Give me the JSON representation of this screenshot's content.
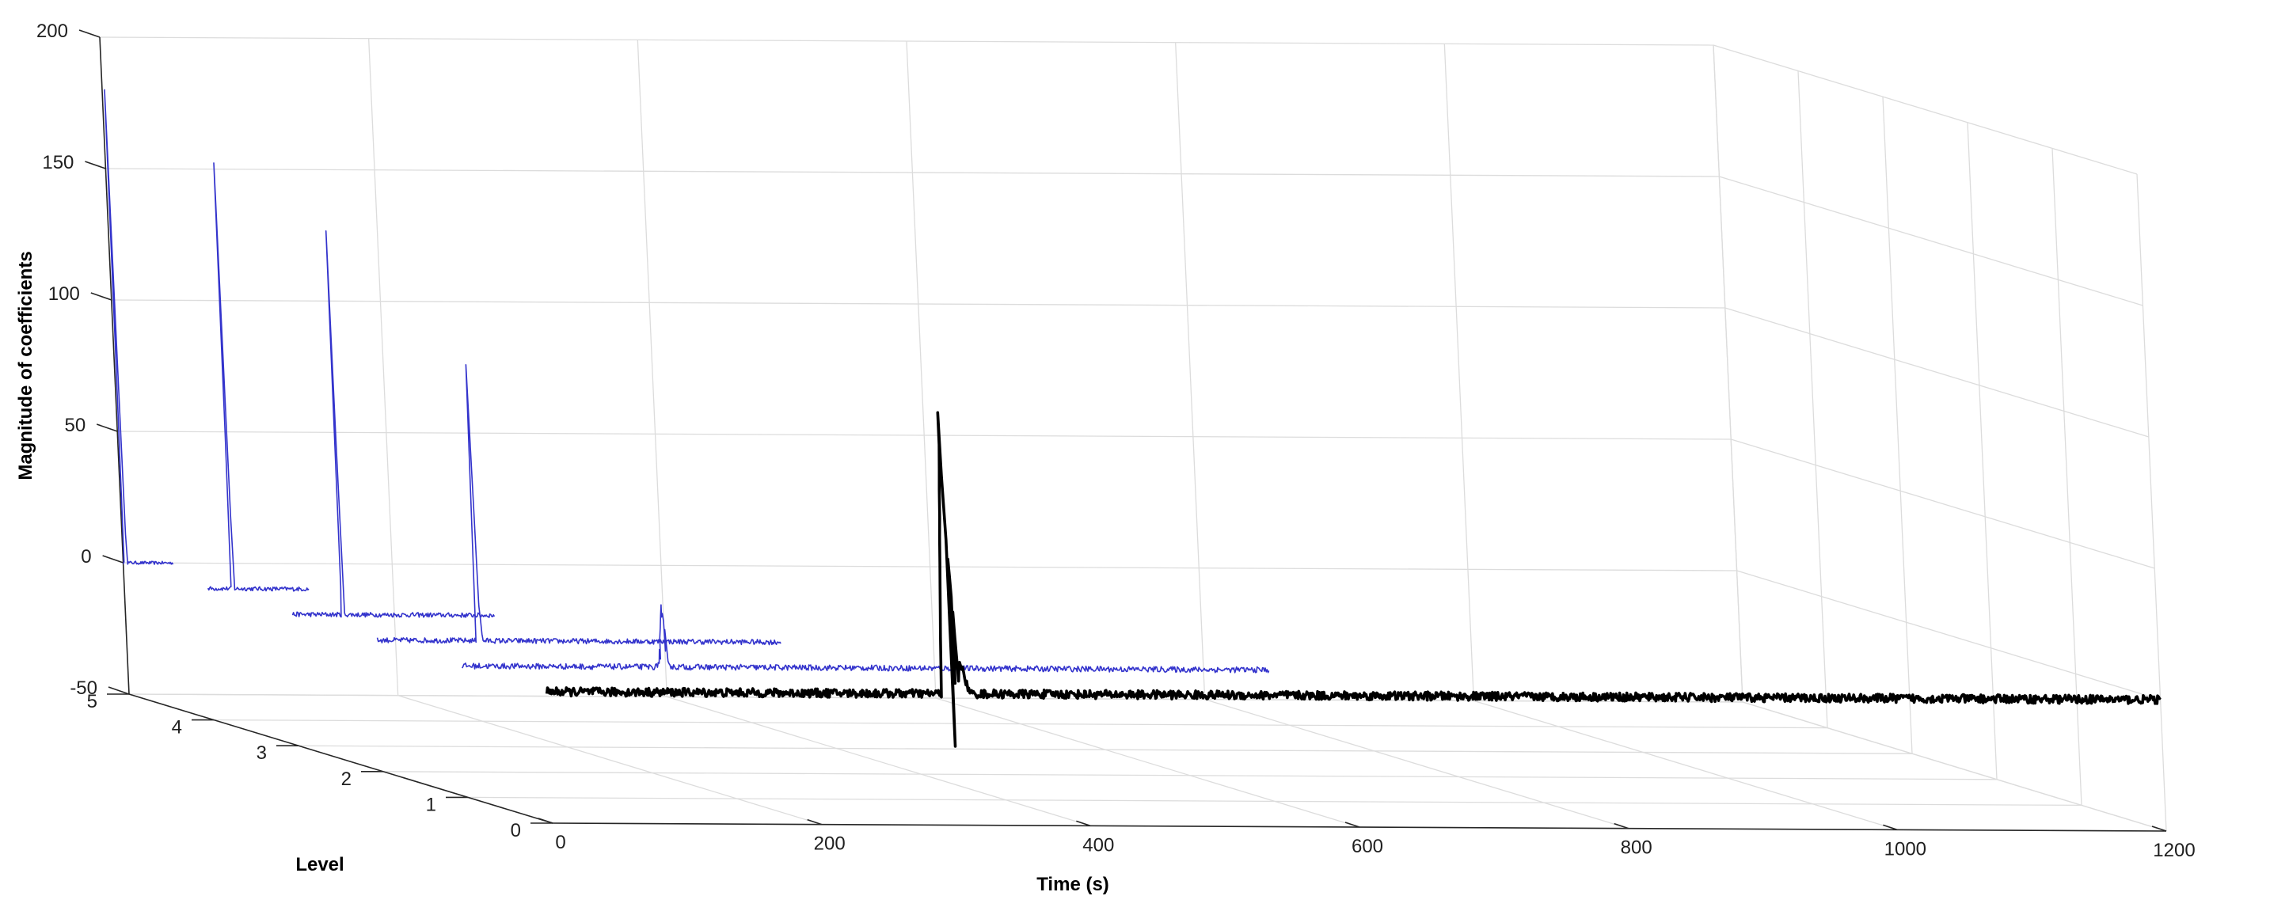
{
  "chart_data": {
    "type": "line",
    "view": "3d-waterfall",
    "title": "",
    "xlabel": "Time (s)",
    "ylabel": "Level",
    "zlabel": "Magnitude of coefficients",
    "xlim": [
      0,
      1200
    ],
    "ylim": [
      0,
      5
    ],
    "zlim": [
      -50,
      200
    ],
    "x_ticks": [
      "0",
      "200",
      "400",
      "600",
      "800",
      "1000",
      "1200"
    ],
    "y_ticks": [
      "0",
      "1",
      "2",
      "3",
      "4",
      "5"
    ],
    "z_ticks": [
      "-50",
      "0",
      "50",
      "100",
      "150",
      "200"
    ],
    "grid": true,
    "series": [
      {
        "level": 5,
        "color": "#3333cc",
        "x_range": [
          0,
          37
        ],
        "noise": 0.6,
        "spikes": [
          {
            "x": 1.8,
            "z": 180
          }
        ]
      },
      {
        "level": 4,
        "color": "#3333cc",
        "x_range": [
          0,
          75
        ],
        "noise": 0.8,
        "spikes": [
          {
            "x": 18.5,
            "z": 162
          }
        ]
      },
      {
        "level": 3,
        "color": "#3333cc",
        "x_range": [
          0,
          150
        ],
        "noise": 0.9,
        "spikes": [
          {
            "x": 37.5,
            "z": 146
          }
        ]
      },
      {
        "level": 2,
        "color": "#3333cc",
        "x_range": [
          0,
          300
        ],
        "noise": 1.0,
        "spikes": [
          {
            "x": 75,
            "z": 105
          },
          {
            "x": 76.6,
            "z": 14
          }
        ]
      },
      {
        "level": 1,
        "color": "#3333cc",
        "x_range": [
          0,
          600
        ],
        "noise": 1.1,
        "spikes": [
          {
            "x": 150,
            "z": 19
          },
          {
            "x": 151.8,
            "z": 6
          },
          {
            "x": 147.8,
            "z": 3
          }
        ]
      },
      {
        "level": 0,
        "color": "#000000",
        "x_range": [
          0,
          1200
        ],
        "noise": 1.6,
        "spikes": [
          {
            "x": 300,
            "z": 107
          },
          {
            "x": 302,
            "z": -20
          },
          {
            "x": 304,
            "z": 4
          },
          {
            "x": 308,
            "z": 12
          }
        ]
      }
    ]
  }
}
